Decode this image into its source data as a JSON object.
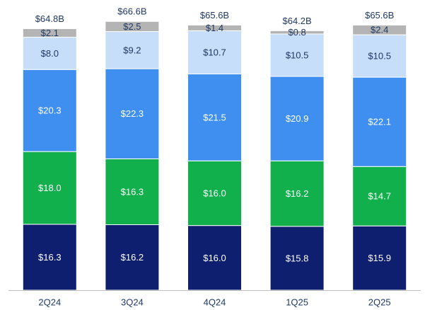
{
  "chart_data": {
    "type": "stacked-bar",
    "categories": [
      "2Q24",
      "3Q24",
      "4Q24",
      "1Q25",
      "2Q25"
    ],
    "series": [
      {
        "color": "#0d1f6e",
        "values": [
          16.3,
          16.2,
          16.0,
          15.8,
          15.9
        ],
        "value_labels": [
          "$16.3",
          "$16.2",
          "$16.0",
          "$15.8",
          "$15.9"
        ]
      },
      {
        "color": "#12b04c",
        "values": [
          18.0,
          16.3,
          16.0,
          16.2,
          14.7
        ],
        "value_labels": [
          "$18.0",
          "$16.3",
          "$16.0",
          "$16.2",
          "$14.7"
        ]
      },
      {
        "color": "#3f8ff0",
        "values": [
          20.3,
          22.3,
          21.5,
          20.9,
          22.1
        ],
        "value_labels": [
          "$20.3",
          "$22.3",
          "$21.5",
          "$20.9",
          "$22.1"
        ]
      },
      {
        "color": "#c6def9",
        "values": [
          8.0,
          9.2,
          10.7,
          10.5,
          10.5
        ],
        "value_labels": [
          "$8.0",
          "$9.2",
          "$10.7",
          "$10.5",
          "$10.5"
        ]
      },
      {
        "color": "#b4b4b4",
        "values": [
          2.1,
          2.5,
          1.4,
          0.8,
          2.4
        ],
        "value_labels": [
          "$2.1",
          "$2.5",
          "$1.4",
          "$0.8",
          "$2.4"
        ]
      }
    ],
    "totals": {
      "values": [
        64.8,
        66.6,
        65.6,
        64.2,
        65.6
      ],
      "value_labels": [
        "$64.8B",
        "$66.6B",
        "$65.6B",
        "$64.2B",
        "$65.6B"
      ]
    }
  }
}
